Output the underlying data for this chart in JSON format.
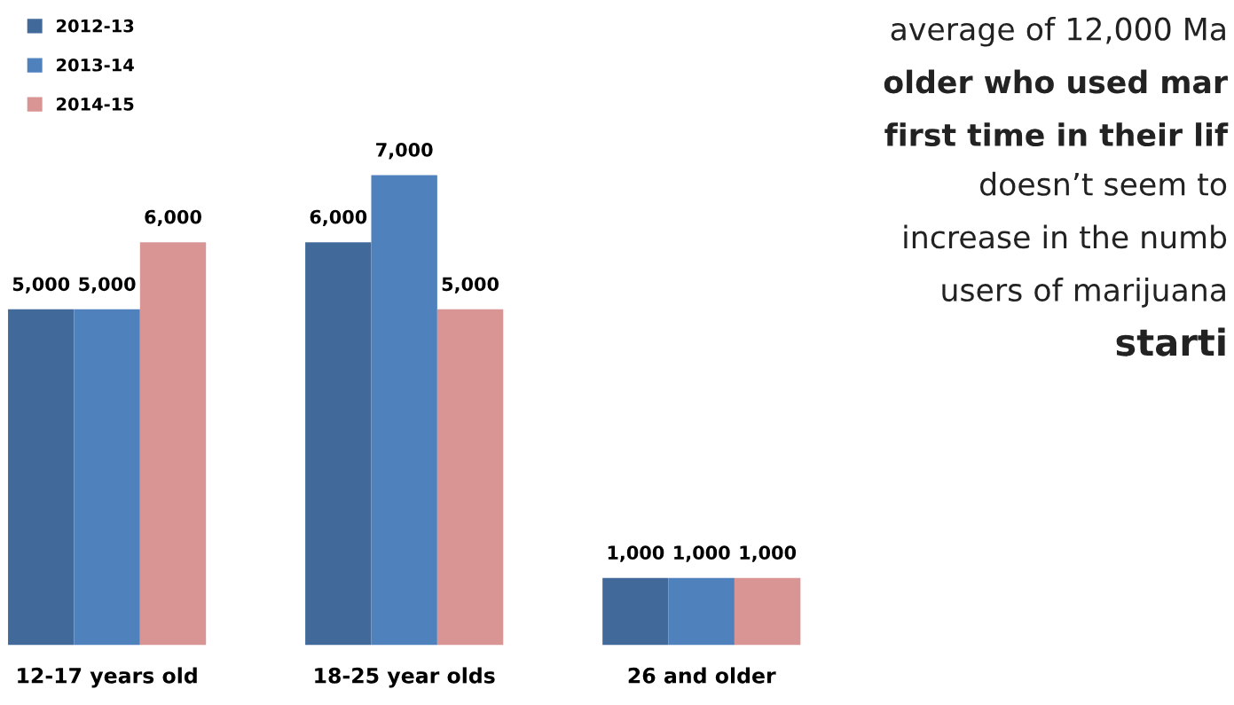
{
  "chart_data": {
    "type": "bar",
    "categories": [
      "12-17 years old",
      "18-25 year olds",
      "26 and older"
    ],
    "series": [
      {
        "name": "2012-13",
        "color": "#416a9b",
        "values": [
          5000,
          6000,
          1000
        ],
        "value_labels": [
          "5,000",
          "6,000",
          "1,000"
        ]
      },
      {
        "name": "2013-14",
        "color": "#4f81bd",
        "values": [
          5000,
          7000,
          1000
        ],
        "value_labels": [
          "5,000",
          "7,000",
          "1,000"
        ]
      },
      {
        "name": "2014-15",
        "color": "#d99594",
        "values": [
          6000,
          5000,
          1000
        ],
        "value_labels": [
          "6,000",
          "5,000",
          "1,000"
        ]
      }
    ],
    "tick_labels": "x",
    "grid": false,
    "legend": "top left",
    "annotations": [
      "average of 12,000 Ma",
      "older who used mar",
      "first time in their lif",
      "doesn’t seem to",
      "increase in the numb",
      "users of marijuana",
      "starti"
    ]
  }
}
